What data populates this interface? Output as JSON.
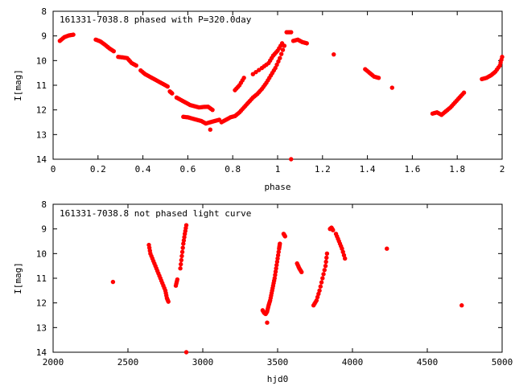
{
  "chart_data": [
    {
      "type": "scatter",
      "title": "161331-7038.8 phased with P=320.0day",
      "xlabel": "phase",
      "ylabel": "I[mag]",
      "xlim": [
        0,
        2
      ],
      "ylim": [
        14,
        8
      ],
      "y_inverted": true,
      "xticks": [
        "0",
        "0.2",
        "0.4",
        "0.6",
        "0.8",
        "1",
        "1.2",
        "1.4",
        "1.6",
        "1.8",
        "2"
      ],
      "yticks": [
        "8",
        "9",
        "10",
        "11",
        "12",
        "13",
        "14"
      ],
      "grid": false,
      "marker_color": "#ff0000",
      "segments": [
        [
          [
            0.03,
            9.2
          ],
          [
            0.05,
            9.05
          ],
          [
            0.07,
            8.98
          ],
          [
            0.09,
            8.95
          ]
        ],
        [
          [
            0.19,
            9.15
          ],
          [
            0.21,
            9.22
          ],
          [
            0.23,
            9.35
          ],
          [
            0.25,
            9.5
          ],
          [
            0.27,
            9.62
          ]
        ],
        [
          [
            0.29,
            9.85
          ],
          [
            0.31,
            9.87
          ],
          [
            0.33,
            9.9
          ],
          [
            0.35,
            10.1
          ],
          [
            0.37,
            10.2
          ]
        ],
        [
          [
            0.39,
            10.4
          ],
          [
            0.41,
            10.55
          ],
          [
            0.43,
            10.65
          ],
          [
            0.45,
            10.75
          ],
          [
            0.47,
            10.85
          ],
          [
            0.49,
            10.95
          ],
          [
            0.51,
            11.05
          ]
        ],
        [
          [
            0.52,
            11.25
          ],
          [
            0.53,
            11.33
          ]
        ],
        [
          [
            0.55,
            11.5
          ],
          [
            0.57,
            11.6
          ],
          [
            0.59,
            11.7
          ],
          [
            0.61,
            11.8
          ],
          [
            0.63,
            11.85
          ],
          [
            0.65,
            11.9
          ],
          [
            0.67,
            11.88
          ],
          [
            0.69,
            11.87
          ],
          [
            0.71,
            12.0
          ]
        ],
        [
          [
            0.58,
            12.28
          ],
          [
            0.6,
            12.3
          ],
          [
            0.62,
            12.35
          ],
          [
            0.64,
            12.4
          ],
          [
            0.66,
            12.45
          ],
          [
            0.68,
            12.55
          ],
          [
            0.7,
            12.5
          ],
          [
            0.72,
            12.45
          ],
          [
            0.74,
            12.4
          ]
        ],
        [
          [
            0.7,
            12.8
          ]
        ],
        [
          [
            0.75,
            12.5
          ],
          [
            0.77,
            12.4
          ],
          [
            0.79,
            12.3
          ],
          [
            0.81,
            12.25
          ],
          [
            0.83,
            12.1
          ],
          [
            0.85,
            11.9
          ],
          [
            0.87,
            11.7
          ],
          [
            0.89,
            11.5
          ],
          [
            0.91,
            11.35
          ],
          [
            0.93,
            11.15
          ],
          [
            0.95,
            10.9
          ],
          [
            0.97,
            10.6
          ],
          [
            0.99,
            10.3
          ],
          [
            1.01,
            9.9
          ],
          [
            1.03,
            9.4
          ]
        ],
        [
          [
            0.81,
            11.2
          ],
          [
            0.83,
            11.0
          ],
          [
            0.85,
            10.7
          ]
        ],
        [
          [
            0.89,
            10.55
          ],
          [
            0.93,
            10.3
          ],
          [
            0.96,
            10.1
          ],
          [
            0.98,
            9.8
          ],
          [
            1.0,
            9.6
          ],
          [
            1.02,
            9.3
          ]
        ],
        [
          [
            1.04,
            8.85
          ],
          [
            1.06,
            8.85
          ]
        ],
        [
          [
            1.07,
            9.2
          ],
          [
            1.09,
            9.15
          ],
          [
            1.11,
            9.25
          ],
          [
            1.13,
            9.3
          ]
        ],
        [
          [
            1.06,
            14.0
          ]
        ],
        [
          [
            1.25,
            9.75
          ]
        ],
        [
          [
            1.39,
            10.35
          ],
          [
            1.41,
            10.5
          ],
          [
            1.43,
            10.65
          ],
          [
            1.45,
            10.7
          ]
        ],
        [
          [
            1.51,
            11.1
          ]
        ],
        [
          [
            1.69,
            12.15
          ],
          [
            1.71,
            12.1
          ],
          [
            1.73,
            12.2
          ],
          [
            1.75,
            12.05
          ],
          [
            1.77,
            11.9
          ],
          [
            1.79,
            11.7
          ],
          [
            1.81,
            11.5
          ],
          [
            1.83,
            11.3
          ]
        ],
        [
          [
            1.91,
            10.75
          ],
          [
            1.93,
            10.7
          ],
          [
            1.95,
            10.6
          ],
          [
            1.97,
            10.45
          ],
          [
            1.99,
            10.2
          ],
          [
            2.0,
            9.85
          ]
        ]
      ]
    },
    {
      "type": "scatter",
      "title": "161331-7038.8 not phased light curve",
      "xlabel": "hjd0",
      "ylabel": "I[mag]",
      "xlim": [
        2000,
        5000
      ],
      "ylim": [
        14,
        8
      ],
      "y_inverted": true,
      "xticks": [
        "2000",
        "2500",
        "3000",
        "3500",
        "4000",
        "4500",
        "5000"
      ],
      "yticks": [
        "8",
        "9",
        "10",
        "11",
        "12",
        "13",
        "14"
      ],
      "grid": false,
      "marker_color": "#ff0000",
      "segments": [
        [
          [
            2400,
            11.15
          ]
        ],
        [
          [
            2640,
            9.65
          ],
          [
            2650,
            10.0
          ],
          [
            2670,
            10.3
          ],
          [
            2690,
            10.6
          ],
          [
            2710,
            10.9
          ],
          [
            2730,
            11.2
          ],
          [
            2750,
            11.5
          ],
          [
            2760,
            11.8
          ],
          [
            2770,
            11.95
          ]
        ],
        [
          [
            2820,
            11.3
          ],
          [
            2830,
            11.05
          ]
        ],
        [
          [
            2850,
            10.6
          ],
          [
            2860,
            10.1
          ],
          [
            2870,
            9.6
          ],
          [
            2880,
            9.2
          ],
          [
            2890,
            8.85
          ]
        ],
        [
          [
            2890,
            14.0
          ]
        ],
        [
          [
            3400,
            12.3
          ],
          [
            3410,
            12.4
          ],
          [
            3420,
            12.45
          ],
          [
            3430,
            12.35
          ],
          [
            3440,
            12.1
          ],
          [
            3450,
            11.9
          ],
          [
            3460,
            11.6
          ],
          [
            3470,
            11.3
          ],
          [
            3480,
            11.0
          ],
          [
            3490,
            10.6
          ],
          [
            3500,
            10.2
          ],
          [
            3510,
            9.8
          ],
          [
            3515,
            9.6
          ]
        ],
        [
          [
            3430,
            12.8
          ]
        ],
        [
          [
            3540,
            9.2
          ],
          [
            3550,
            9.3
          ]
        ],
        [
          [
            3630,
            10.4
          ],
          [
            3645,
            10.6
          ],
          [
            3660,
            10.75
          ]
        ],
        [
          [
            3740,
            12.1
          ],
          [
            3760,
            11.9
          ],
          [
            3780,
            11.5
          ],
          [
            3800,
            11.0
          ],
          [
            3820,
            10.5
          ],
          [
            3830,
            10.0
          ]
        ],
        [
          [
            3850,
            9.0
          ],
          [
            3860,
            8.95
          ],
          [
            3870,
            9.05
          ]
        ],
        [
          [
            3890,
            9.2
          ],
          [
            3910,
            9.5
          ],
          [
            3930,
            9.8
          ],
          [
            3950,
            10.2
          ]
        ],
        [
          [
            4230,
            9.8
          ]
        ],
        [
          [
            4730,
            12.1
          ]
        ]
      ]
    }
  ]
}
